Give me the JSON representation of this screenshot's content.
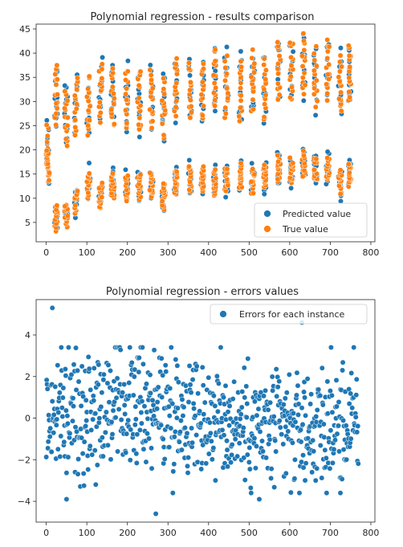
{
  "chart_data": [
    {
      "type": "scatter",
      "title": "Polynomial regression - results comparison",
      "xlabel": "",
      "ylabel": "",
      "xlim": [
        -25,
        810
      ],
      "ylim": [
        1,
        46
      ],
      "xticks": [
        0,
        100,
        200,
        300,
        400,
        500,
        600,
        700,
        800
      ],
      "yticks": [
        5,
        10,
        15,
        20,
        25,
        30,
        35,
        40,
        45
      ],
      "grid": false,
      "legend_position": "lower-right",
      "series": [
        {
          "name": "Predicted value",
          "color": "#1f77b4",
          "draw_order": 1
        },
        {
          "name": "True value",
          "color": "#ff7f0e",
          "draw_order": 2
        }
      ],
      "groups": [
        {
          "x": 0,
          "upper": 19.0,
          "lower": 17.0
        },
        {
          "x": 20,
          "upper": 31.5,
          "lower": 6.0
        },
        {
          "x": 45,
          "upper": 26.5,
          "lower": 6.5
        },
        {
          "x": 70,
          "upper": 29.0,
          "lower": 9.5
        },
        {
          "x": 100,
          "upper": 29.0,
          "lower": 13.0
        },
        {
          "x": 130,
          "upper": 32.0,
          "lower": 10.5
        },
        {
          "x": 160,
          "upper": 31.0,
          "lower": 12.5
        },
        {
          "x": 195,
          "upper": 30.5,
          "lower": 12.0
        },
        {
          "x": 225,
          "upper": 30.0,
          "lower": 12.5
        },
        {
          "x": 255,
          "upper": 30.5,
          "lower": 12.5
        },
        {
          "x": 285,
          "upper": 28.5,
          "lower": 10.5
        },
        {
          "x": 315,
          "upper": 33.0,
          "lower": 13.5
        },
        {
          "x": 350,
          "upper": 32.5,
          "lower": 14.0
        },
        {
          "x": 380,
          "upper": 32.0,
          "lower": 14.0
        },
        {
          "x": 410,
          "upper": 34.5,
          "lower": 13.5
        },
        {
          "x": 440,
          "upper": 33.0,
          "lower": 14.0
        },
        {
          "x": 475,
          "upper": 32.5,
          "lower": 14.5
        },
        {
          "x": 505,
          "upper": 34.0,
          "lower": 13.5
        },
        {
          "x": 535,
          "upper": 32.5,
          "lower": 14.5
        },
        {
          "x": 570,
          "upper": 36.5,
          "lower": 16.0
        },
        {
          "x": 600,
          "upper": 36.5,
          "lower": 15.5
        },
        {
          "x": 630,
          "upper": 37.5,
          "lower": 16.5
        },
        {
          "x": 660,
          "upper": 35.0,
          "lower": 16.0
        },
        {
          "x": 690,
          "upper": 36.5,
          "lower": 16.0
        },
        {
          "x": 720,
          "upper": 33.5,
          "lower": 13.5
        },
        {
          "x": 745,
          "upper": 36.0,
          "lower": 15.0
        }
      ]
    },
    {
      "type": "scatter",
      "title": "Polynomial regression - errors values",
      "xlabel": "",
      "ylabel": "",
      "xlim": [
        -25,
        810
      ],
      "ylim": [
        -5.0,
        5.7
      ],
      "xticks": [
        0,
        100,
        200,
        300,
        400,
        500,
        600,
        700,
        800
      ],
      "yticks": [
        -4,
        -2,
        0,
        2,
        4
      ],
      "grid": false,
      "legend_position": "upper-right",
      "series": [
        {
          "name": "Errors for each instance",
          "color": "#1f77b4"
        }
      ],
      "n_points": 770,
      "outliers": [
        {
          "x": 15,
          "y": 5.3
        },
        {
          "x": 630,
          "y": 4.6
        },
        {
          "x": 270,
          "y": -4.6
        },
        {
          "x": 50,
          "y": -3.9
        },
        {
          "x": 525,
          "y": -3.9
        },
        {
          "x": 725,
          "y": -3.6
        }
      ]
    }
  ]
}
